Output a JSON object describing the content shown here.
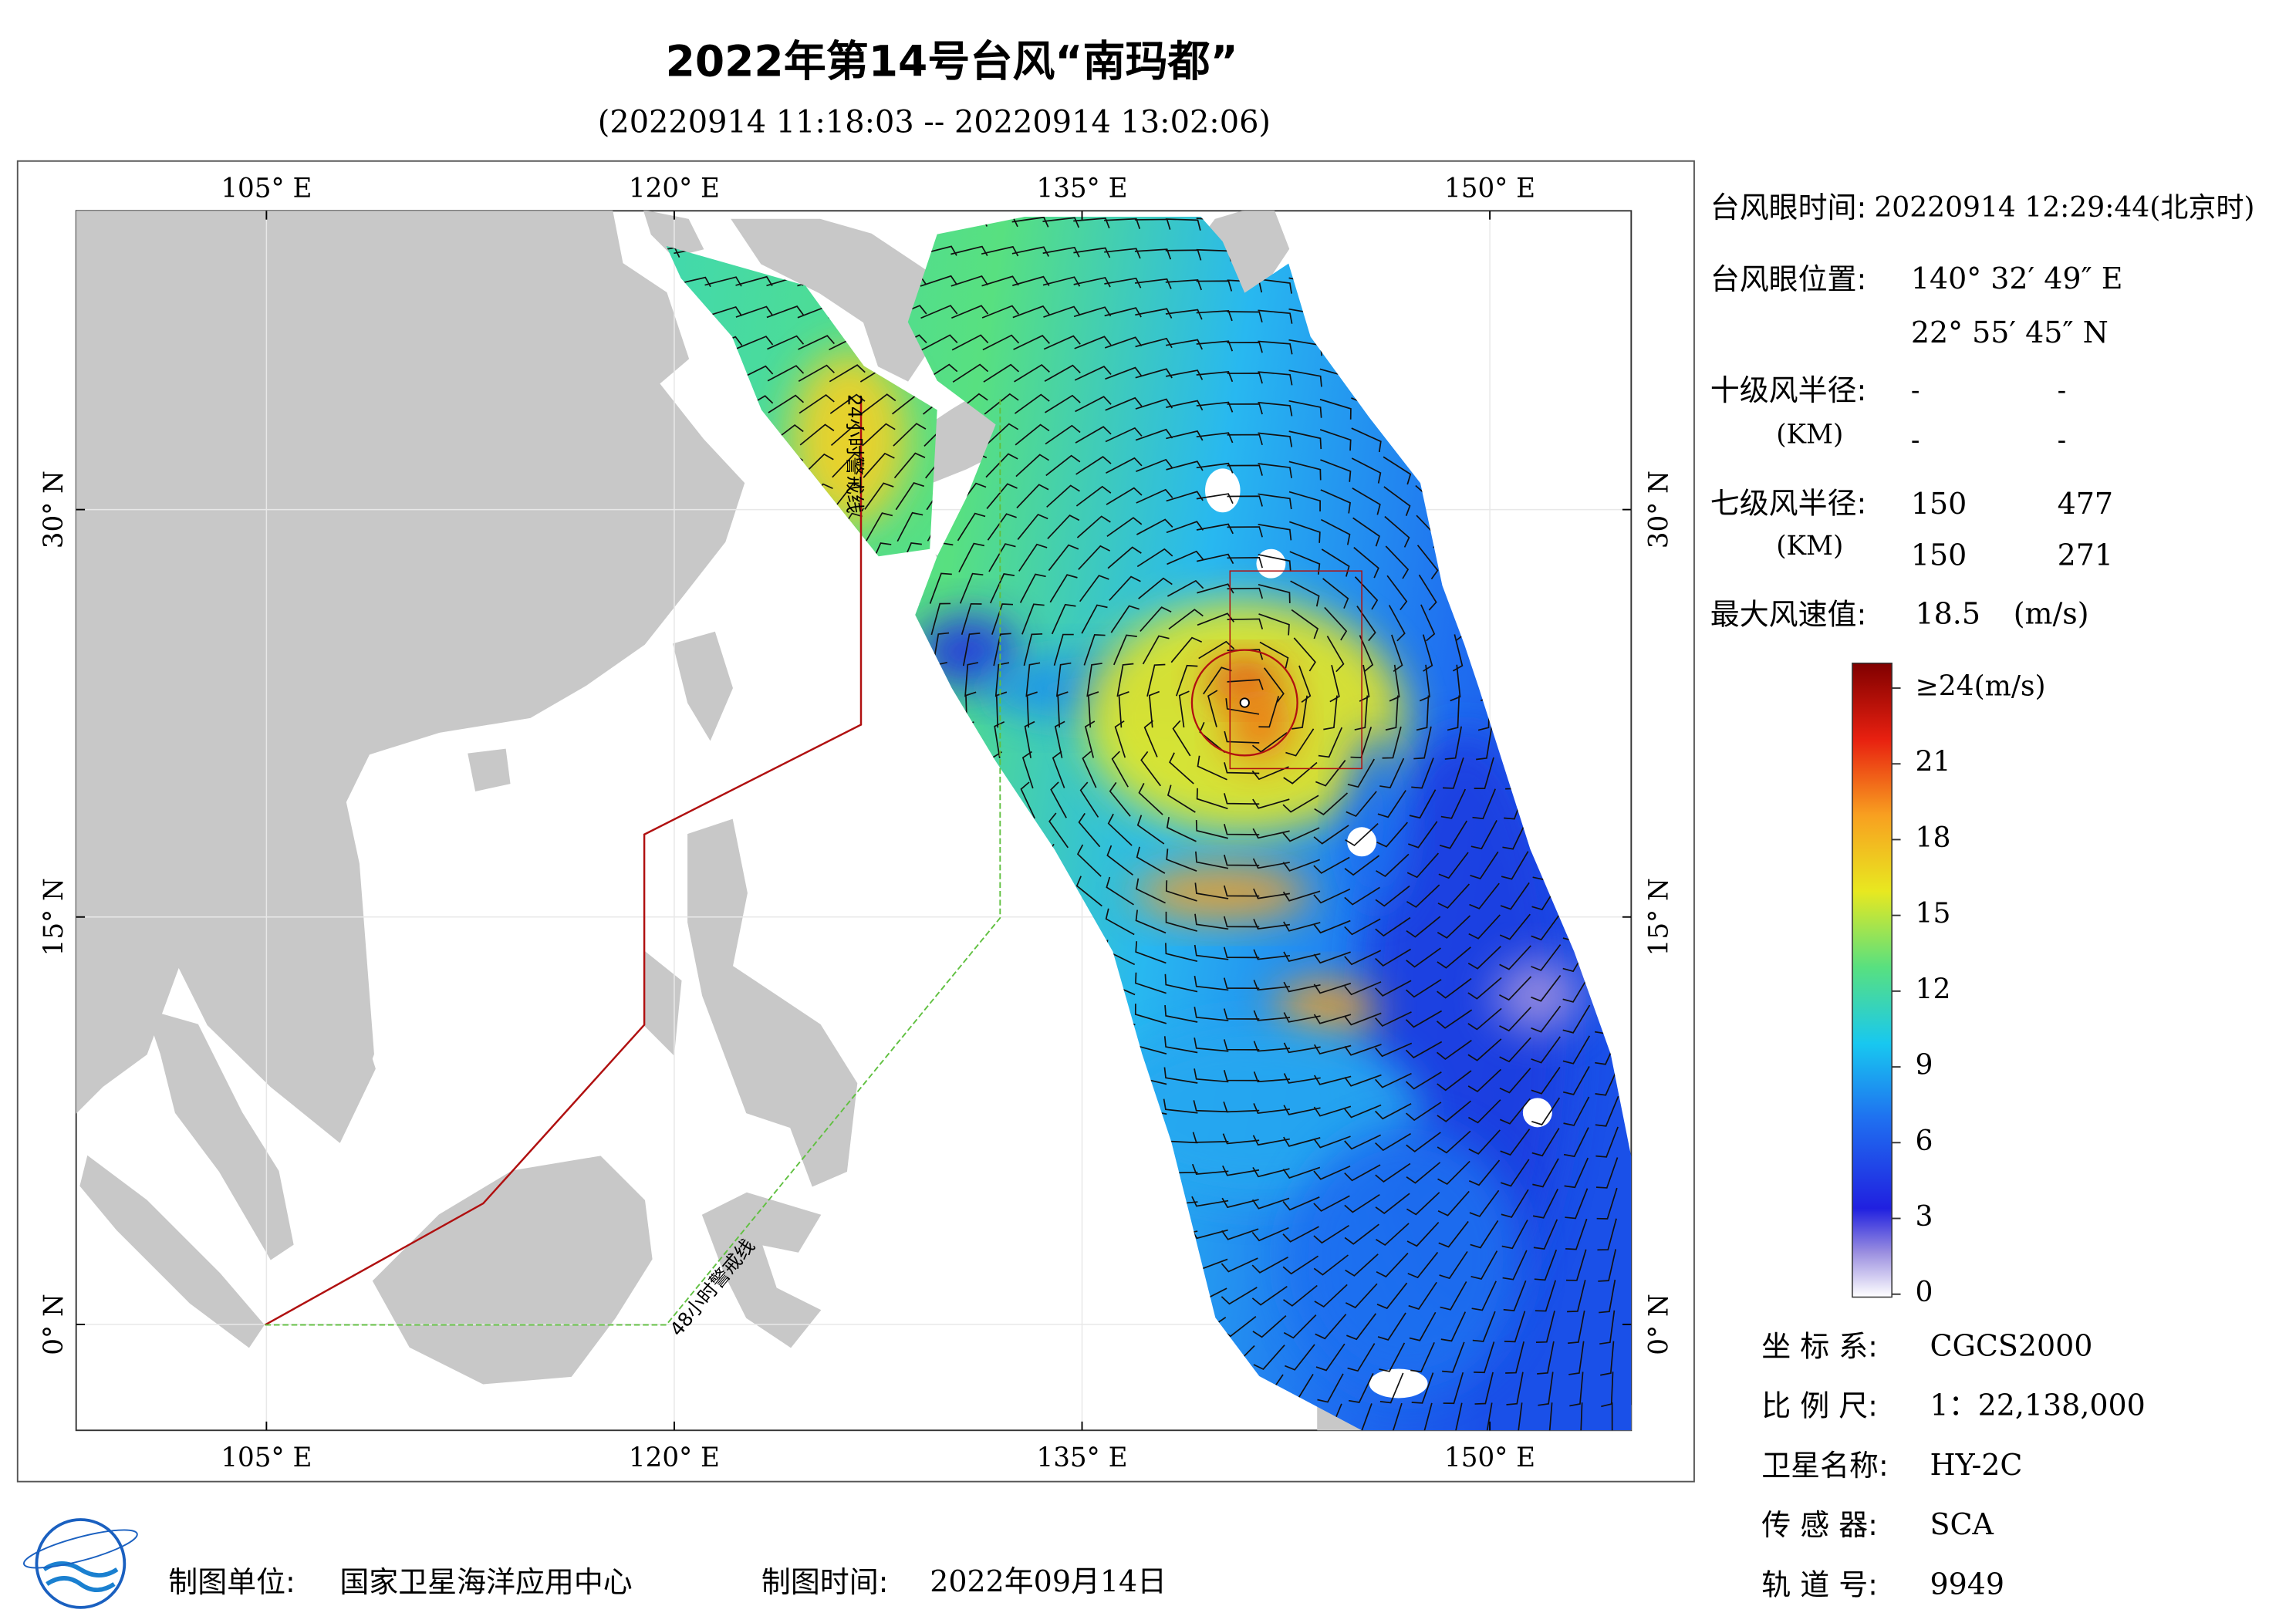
{
  "title": "2022年第14号台风“南玛都”",
  "subtitle": "(20220914 11:18:03 -- 20220914 13:02:06)",
  "map": {
    "xlim": [
      98,
      155.2
    ],
    "ylim": [
      -3.9,
      41
    ],
    "xticks": [
      {
        "value": 105,
        "label": "105° E"
      },
      {
        "value": 120,
        "label": "120° E"
      },
      {
        "value": 135,
        "label": "135° E"
      },
      {
        "value": 150,
        "label": "150° E"
      }
    ],
    "yticks": [
      {
        "value": 0,
        "label": "0° N"
      },
      {
        "value": 15,
        "label": "15° N"
      },
      {
        "value": 30,
        "label": "30° N"
      }
    ],
    "warning_lines": [
      "24小时警戒线",
      "48小时警戒线"
    ]
  },
  "info": {
    "eye_time_label": "台风眼时间:",
    "eye_time": "20220914 12:29:44(北京时)",
    "eye_position_label": "台风眼位置:",
    "eye_lon": "140° 32′ 49″ E",
    "eye_lat": "22° 55′ 45″ N",
    "r10_label": "十级风半径:",
    "r10_unit": "(KM)",
    "r10": [
      [
        "-",
        "-"
      ],
      [
        "-",
        "-"
      ]
    ],
    "r7_label": "七级风半径:",
    "r7_unit": "(KM)",
    "r7": [
      [
        150,
        477
      ],
      [
        150,
        271
      ]
    ],
    "max_wind_label": "最大风速值:",
    "max_wind": 18.5,
    "max_wind_unit": "(m/s)"
  },
  "colorbar": {
    "lim": [
      0,
      24
    ],
    "ticks": [
      0,
      3,
      6,
      9,
      12,
      15,
      18,
      21,
      {
        "value": 24,
        "label": "≥24(m/s)"
      }
    ]
  },
  "meta": [
    {
      "label": "坐 标 系:",
      "value": "CGCS2000"
    },
    {
      "label": "比 例 尺:",
      "value": "1：22,138,000"
    },
    {
      "label": "卫星名称:",
      "value": "HY-2C"
    },
    {
      "label": "传 感 器:",
      "value": "SCA"
    },
    {
      "label": "轨 道 号:",
      "value": 9949
    }
  ],
  "footer": {
    "maker_label": "制图单位:",
    "maker": "国家卫星海洋应用中心",
    "date_label": "制图时间:",
    "date": "2022年09月14日"
  }
}
